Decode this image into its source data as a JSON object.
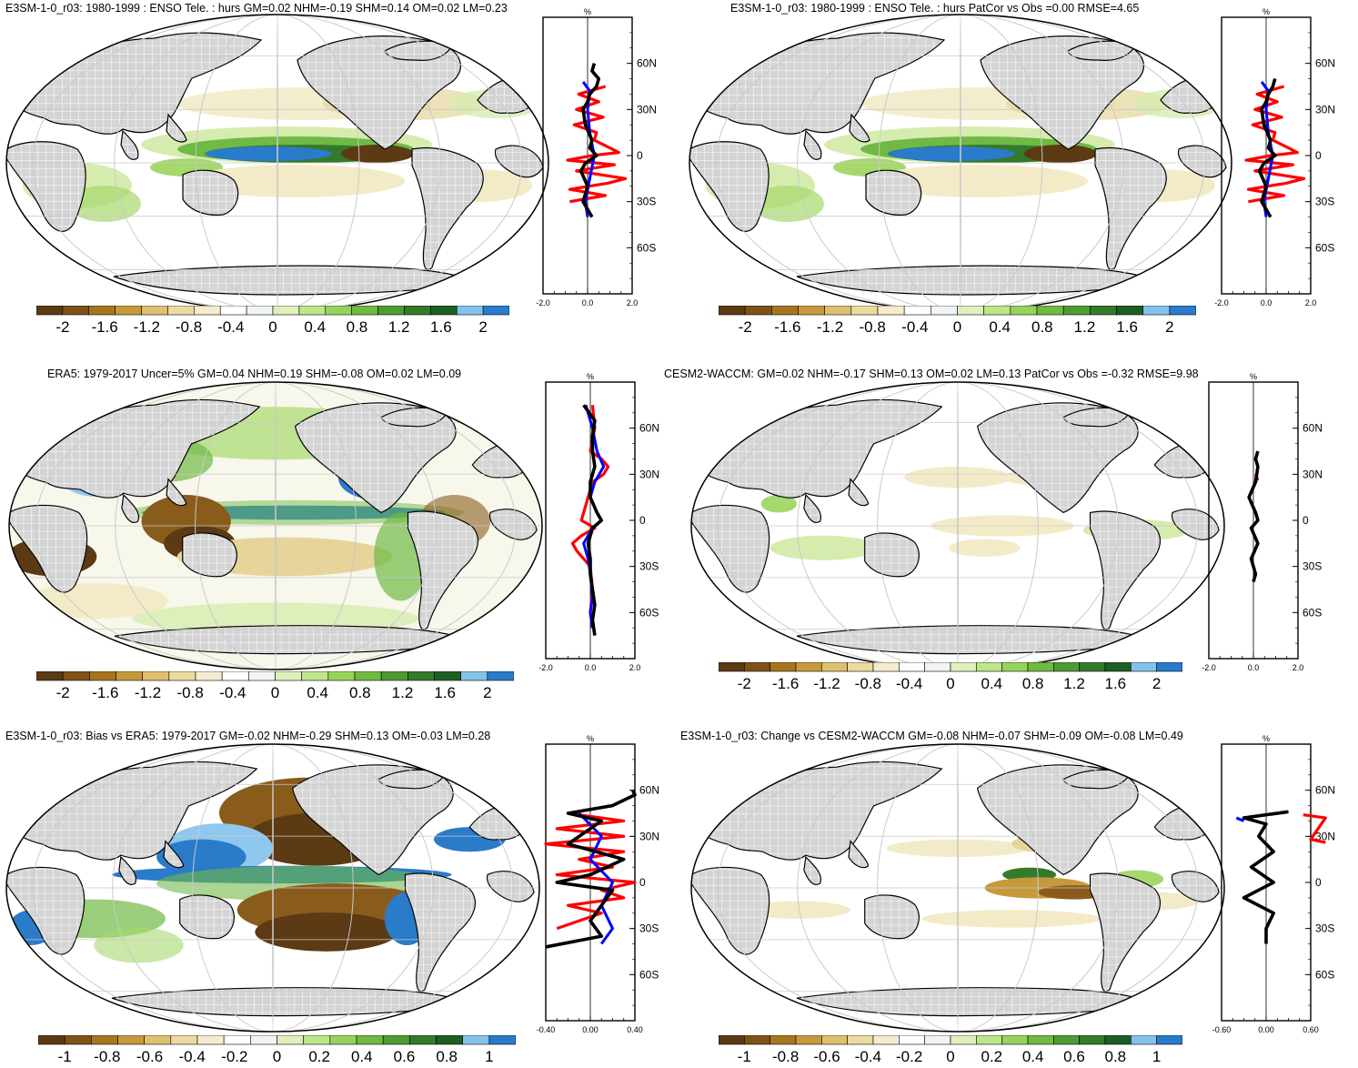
{
  "panels": [
    {
      "id": "p1",
      "title": "E3SM-1-0_r03: 1980-1999 : ENSO Tele. : hurs GM=0.02 NHM=-0.19 SHM=0.14 OM=0.02 LM=0.23",
      "colorbar": {
        "labels": [
          "-2",
          "-1.6",
          "-1.2",
          "-0.8",
          "-0.4",
          "0",
          "0.4",
          "0.8",
          "1.2",
          "1.6",
          "2"
        ]
      },
      "profile": {
        "xlabels": [
          "-2.0",
          "0.0",
          "2.0"
        ],
        "ylabels": [
          "60N",
          "30N",
          "0",
          "30S",
          "60S"
        ],
        "unit": "%",
        "series": [
          {
            "color": "red",
            "lat": [
              45,
              40,
              35,
              30,
              25,
              20,
              15,
              10,
              5,
              2,
              0,
              -3,
              -6,
              -10,
              -15,
              -18,
              -22,
              -26,
              -30
            ],
            "val": [
              0.8,
              -0.4,
              0.5,
              -0.5,
              0.7,
              -0.6,
              0.4,
              0.3,
              1.0,
              1.4,
              0.2,
              -0.9,
              1.2,
              -0.5,
              1.7,
              0.9,
              -0.8,
              0.8,
              -0.8
            ]
          },
          {
            "color": "blue",
            "lat": [
              48,
              42,
              30,
              15,
              0,
              -15,
              -30,
              -40
            ],
            "val": [
              -0.2,
              0.1,
              0.0,
              0.1,
              0.3,
              0.1,
              -0.1,
              0.0
            ]
          },
          {
            "color": "black",
            "lat": [
              60,
              55,
              50,
              45,
              40,
              35,
              30,
              20,
              10,
              5,
              0,
              -5,
              -10,
              -20,
              -30,
              -40
            ],
            "val": [
              0.3,
              0.2,
              0.5,
              0.4,
              0.1,
              0.0,
              -0.2,
              -0.1,
              0.2,
              0.1,
              0.4,
              -0.1,
              -0.3,
              0.0,
              -0.2,
              0.2
            ]
          }
        ]
      }
    },
    {
      "id": "p2",
      "title": "E3SM-1-0_r03: 1980-1999 : ENSO Tele. : hurs PatCor vs Obs =0.00 RMSE=4.65",
      "colorbar": {
        "labels": [
          "-2",
          "-1.6",
          "-1.2",
          "-0.8",
          "-0.4",
          "0",
          "0.4",
          "0.8",
          "1.2",
          "1.6",
          "2"
        ]
      },
      "profile": {
        "xlabels": [
          "-2.0",
          "0.0",
          "2.0"
        ],
        "ylabels": [
          "60N",
          "30N",
          "0",
          "30S",
          "60S"
        ],
        "unit": "%",
        "series": [
          {
            "color": "red",
            "lat": [
              45,
              40,
              35,
              30,
              25,
              20,
              15,
              10,
              5,
              2,
              0,
              -3,
              -6,
              -10,
              -15,
              -18,
              -22,
              -26,
              -30
            ],
            "val": [
              0.8,
              -0.4,
              0.5,
              -0.5,
              0.7,
              -0.6,
              0.4,
              0.3,
              1.0,
              1.4,
              0.2,
              -0.9,
              1.2,
              -0.5,
              1.7,
              0.9,
              -0.8,
              0.8,
              -0.8
            ]
          },
          {
            "color": "blue",
            "lat": [
              48,
              42,
              30,
              15,
              0,
              -15,
              -30,
              -40
            ],
            "val": [
              -0.2,
              0.1,
              0.0,
              0.1,
              0.3,
              0.1,
              -0.1,
              0.0
            ]
          },
          {
            "color": "black",
            "lat": [
              50,
              45,
              40,
              35,
              30,
              20,
              10,
              5,
              0,
              -5,
              -10,
              -20,
              -30,
              -40
            ],
            "val": [
              0.4,
              0.3,
              0.1,
              0.0,
              -0.2,
              -0.1,
              0.2,
              0.1,
              0.4,
              -0.1,
              -0.3,
              0.0,
              -0.2,
              0.2
            ]
          }
        ]
      }
    },
    {
      "id": "p3",
      "title": "ERA5: 1979-2017 Uncer=5% GM=0.04 NHM=0.19 SHM=-0.08 OM=0.02 LM=0.09",
      "colorbar": {
        "labels": [
          "-2",
          "-1.6",
          "-1.2",
          "-0.8",
          "-0.4",
          "0",
          "0.4",
          "0.8",
          "1.2",
          "1.6",
          "2"
        ]
      },
      "profile": {
        "xlabels": [
          "-2.0",
          "0.0",
          "2.0"
        ],
        "ylabels": [
          "60N",
          "30N",
          "0",
          "30S",
          "60S"
        ],
        "unit": "%",
        "series": [
          {
            "color": "red",
            "lat": [
              75,
              60,
              45,
              40,
              35,
              30,
              25,
              15,
              5,
              0,
              -5,
              -10,
              -15,
              -20,
              -25,
              -30,
              -45,
              -60,
              -70
            ],
            "val": [
              0.1,
              0.2,
              0.0,
              0.5,
              0.8,
              0.6,
              0.1,
              -0.1,
              -0.3,
              -0.4,
              0.2,
              -0.4,
              -0.8,
              -0.6,
              -0.3,
              0.0,
              0.1,
              0.0,
              0.1
            ]
          },
          {
            "color": "blue",
            "lat": [
              75,
              60,
              45,
              35,
              25,
              15,
              5,
              0,
              -5,
              -15,
              -25,
              -35,
              -50,
              -60,
              -70
            ],
            "val": [
              -0.2,
              0.1,
              0.3,
              0.6,
              0.2,
              0.0,
              0.3,
              0.5,
              0.1,
              -0.3,
              -0.1,
              0.0,
              0.1,
              0.0,
              0.1
            ]
          },
          {
            "color": "black",
            "lat": [
              75,
              65,
              55,
              45,
              35,
              25,
              15,
              5,
              0,
              -5,
              -15,
              -25,
              -35,
              -45,
              -55,
              -65,
              -75
            ],
            "val": [
              -0.3,
              0.2,
              0.1,
              0.1,
              0.2,
              0.0,
              0.0,
              0.3,
              0.5,
              0.1,
              -0.1,
              0.0,
              0.0,
              0.1,
              0.2,
              0.1,
              0.2
            ]
          }
        ]
      }
    },
    {
      "id": "p4",
      "title": "CESM2-WACCM: GM=0.02 NHM=-0.17 SHM=0.13 OM=0.02 LM=0.13 PatCor vs Obs =-0.32 RMSE=9.98",
      "colorbar": {
        "labels": [
          "-2",
          "-1.6",
          "-1.2",
          "-0.8",
          "-0.4",
          "0",
          "0.4",
          "0.8",
          "1.2",
          "1.6",
          "2"
        ]
      },
      "profile": {
        "xlabels": [
          "-2.0",
          "0.0",
          "2.0"
        ],
        "ylabels": [
          "60N",
          "30N",
          "0",
          "30S",
          "60S"
        ],
        "unit": "%",
        "series": [
          {
            "color": "red",
            "lat": [
              30,
              26
            ],
            "val": [
              0.1,
              0.2
            ]
          },
          {
            "color": "black",
            "lat": [
              45,
              40,
              35,
              25,
              15,
              5,
              0,
              -5,
              -15,
              -25,
              -35,
              -40
            ],
            "val": [
              0.2,
              0.1,
              0.2,
              0.1,
              -0.2,
              0.1,
              0.2,
              -0.1,
              0.2,
              -0.1,
              0.1,
              0.0
            ]
          }
        ]
      }
    },
    {
      "id": "p5",
      "title": "E3SM-1-0_r03: Bias vs ERA5: 1979-2017 GM=-0.02 NHM=-0.29 SHM=0.13 OM=-0.03 LM=0.28",
      "colorbar": {
        "labels": [
          "-1",
          "-0.8",
          "-0.6",
          "-0.4",
          "-0.2",
          "0",
          "0.2",
          "0.4",
          "0.6",
          "0.8",
          "1"
        ]
      },
      "profile": {
        "xlabels": [
          "-0.40",
          "0.00",
          "0.40"
        ],
        "ylabels": [
          "60N",
          "30N",
          "0",
          "30S",
          "60S"
        ],
        "unit": "%",
        "series": [
          {
            "color": "red",
            "lat": [
              45,
              40,
              35,
              30,
              25,
              20,
              15,
              10,
              5,
              0,
              -5,
              -10,
              -15,
              -20,
              -30
            ],
            "val": [
              -0.2,
              0.3,
              -0.3,
              0.3,
              -0.4,
              0.3,
              -0.1,
              0.2,
              -0.3,
              0.4,
              0.1,
              0.3,
              -0.2,
              0.1,
              -0.3
            ]
          },
          {
            "color": "blue",
            "lat": [
              45,
              30,
              15,
              0,
              -15,
              -30,
              -40
            ],
            "val": [
              -0.1,
              0.1,
              0.0,
              0.2,
              0.1,
              0.2,
              0.1
            ]
          },
          {
            "color": "black",
            "lat": [
              60,
              57,
              50,
              45,
              40,
              35,
              25,
              15,
              5,
              0,
              -5,
              -15,
              -25,
              -35,
              -42
            ],
            "val": [
              0.38,
              0.4,
              0.2,
              -0.2,
              0.1,
              0.0,
              -0.2,
              0.3,
              0.0,
              -0.3,
              0.2,
              0.1,
              0.0,
              0.1,
              -0.4
            ]
          }
        ]
      }
    },
    {
      "id": "p6",
      "title": "E3SM-1-0_r03: Change vs CESM2-WACCM GM=-0.08 NHM=-0.07 SHM=-0.09 OM=-0.08 LM=0.49",
      "colorbar": {
        "labels": [
          "-1",
          "-0.8",
          "-0.6",
          "-0.4",
          "-0.2",
          "0",
          "0.2",
          "0.4",
          "0.6",
          "0.8",
          "1"
        ]
      },
      "profile": {
        "xlabels": [
          "-0.60",
          "0.00",
          "0.60"
        ],
        "ylabels": [
          "60N",
          "30N",
          "0",
          "30S",
          "60S"
        ],
        "unit": "%",
        "series": [
          {
            "color": "red",
            "lat": [
              44,
              42,
              28,
              26
            ],
            "val": [
              0.5,
              0.8,
              0.6,
              0.8
            ]
          },
          {
            "color": "blue",
            "lat": [
              42,
              40
            ],
            "val": [
              -0.4,
              -0.3
            ]
          },
          {
            "color": "black",
            "lat": [
              46,
              42,
              38,
              30,
              20,
              10,
              0,
              -10,
              -20,
              -30,
              -40
            ],
            "val": [
              0.3,
              -0.3,
              0.0,
              -0.1,
              0.1,
              -0.2,
              0.1,
              -0.3,
              0.1,
              0.0,
              0.0
            ]
          }
        ]
      }
    }
  ]
}
